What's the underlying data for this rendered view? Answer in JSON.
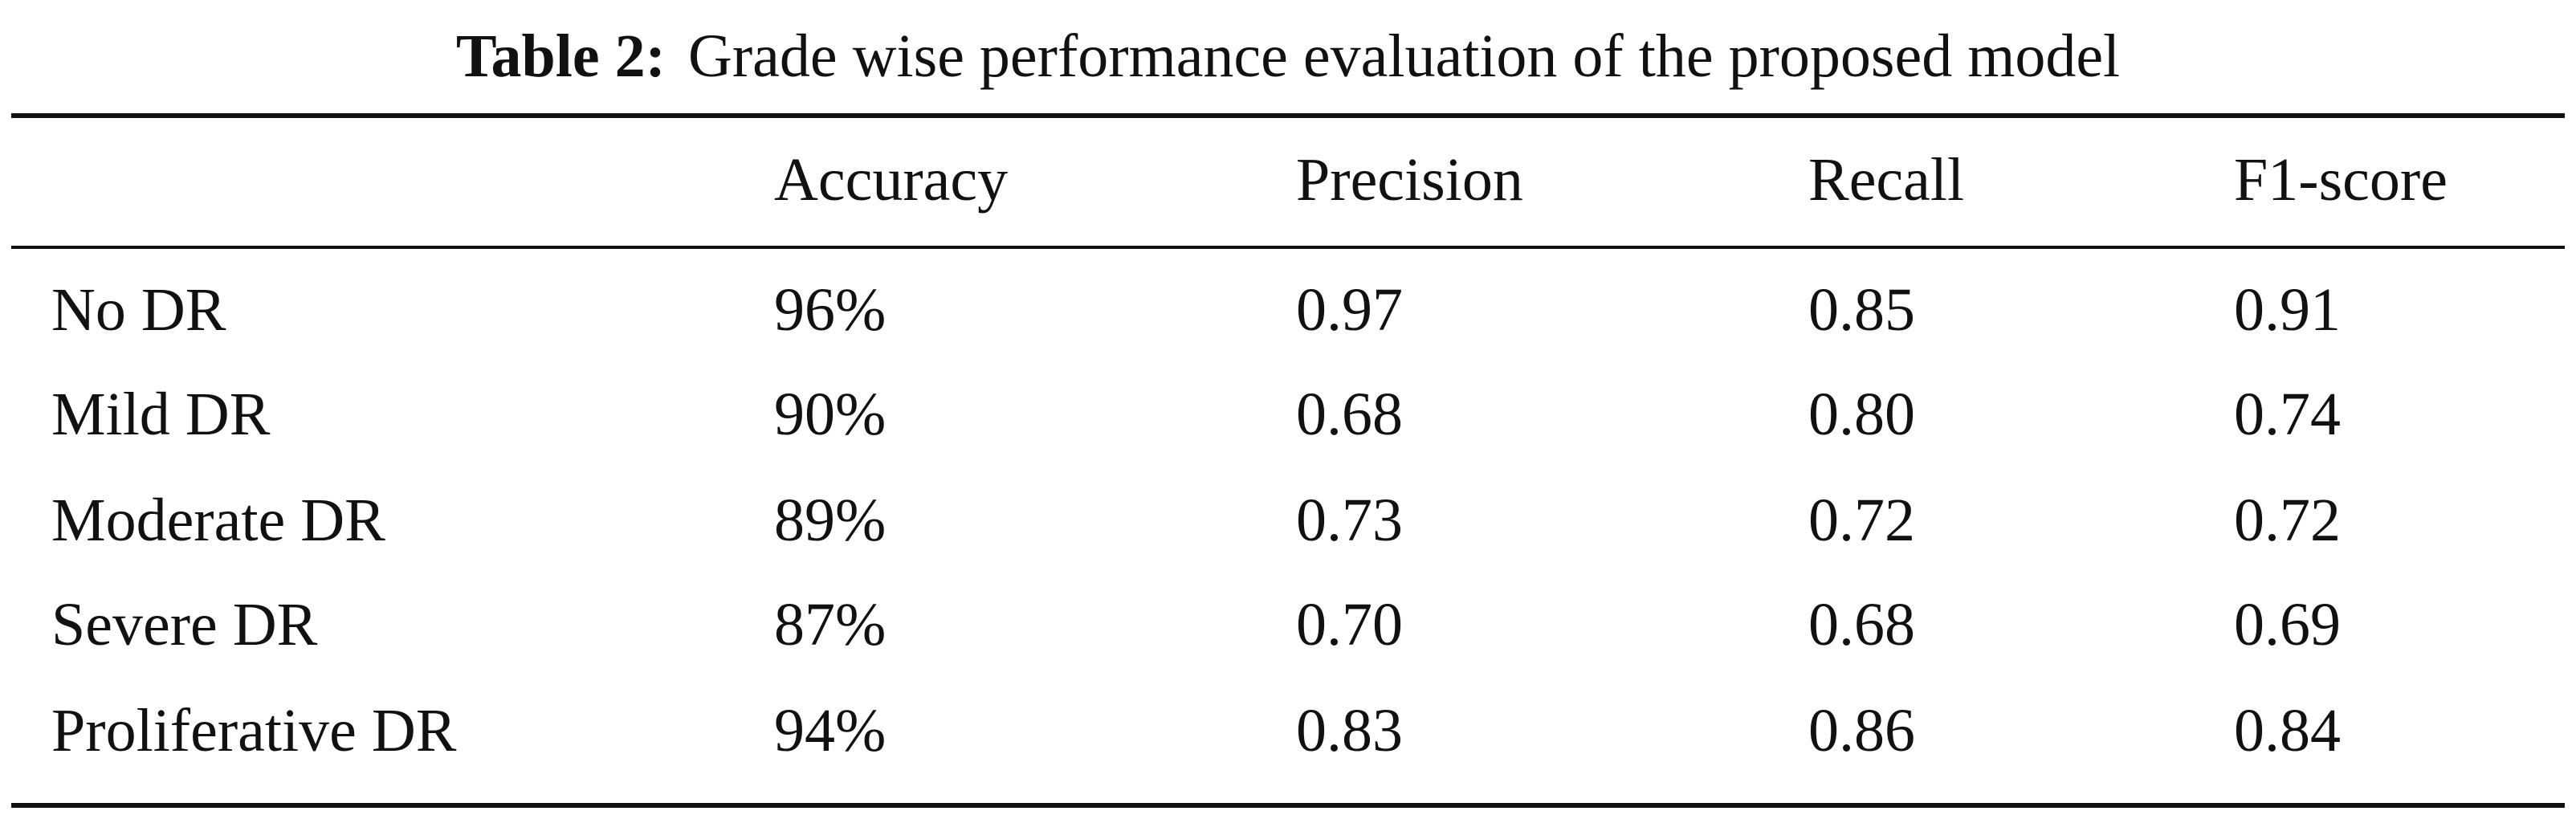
{
  "caption": {
    "label": "Table 2:",
    "text": "Grade wise performance evaluation of the proposed model"
  },
  "table": {
    "columns": [
      "",
      "Accuracy",
      "Precision",
      "Recall",
      "F1-score"
    ],
    "rows": [
      {
        "grade": "No DR",
        "accuracy": "96%",
        "precision": "0.97",
        "recall": "0.85",
        "f1": "0.91"
      },
      {
        "grade": "Mild DR",
        "accuracy": "90%",
        "precision": "0.68",
        "recall": "0.80",
        "f1": "0.74"
      },
      {
        "grade": "Moderate DR",
        "accuracy": "89%",
        "precision": "0.73",
        "recall": "0.72",
        "f1": "0.72"
      },
      {
        "grade": "Severe DR",
        "accuracy": "87%",
        "precision": "0.70",
        "recall": "0.68",
        "f1": "0.69"
      },
      {
        "grade": "Proliferative DR",
        "accuracy": "94%",
        "precision": "0.83",
        "recall": "0.86",
        "f1": "0.84"
      }
    ]
  }
}
